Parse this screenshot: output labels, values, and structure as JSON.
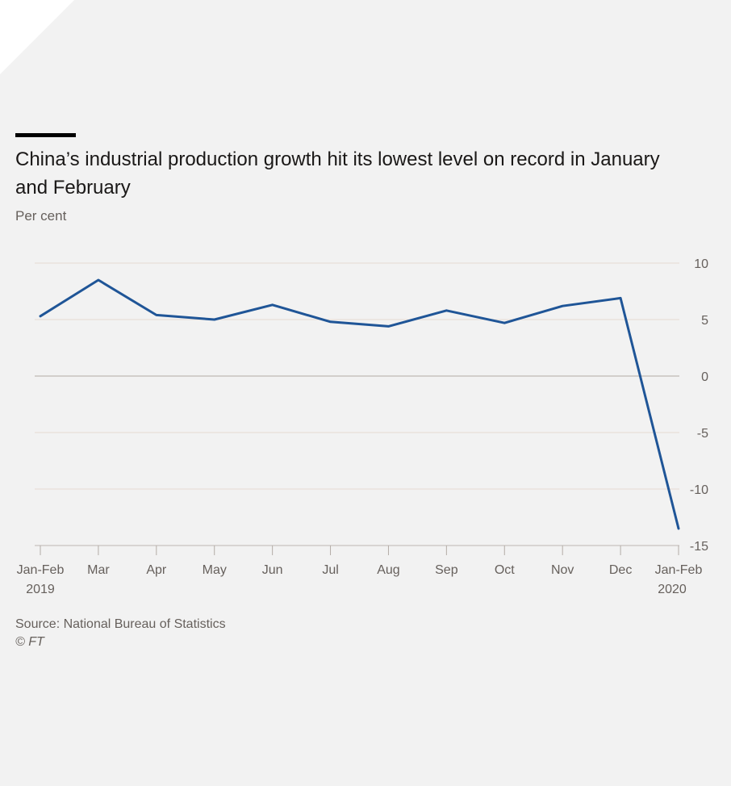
{
  "header": {
    "title": "China’s industrial production growth hit its lowest level on record in January and February",
    "subtitle": "Per cent"
  },
  "footer": {
    "source": "Source: National Bureau of Statistics",
    "copyright": "© FT"
  },
  "colors": {
    "line": "#1f5597",
    "grid": "#e8e0d8",
    "zero_line": "#c8c3be",
    "background": "#f2f2f2"
  },
  "chart_data": {
    "type": "line",
    "categories": [
      "Jan-Feb",
      "Mar",
      "Apr",
      "May",
      "Jun",
      "Jul",
      "Aug",
      "Sep",
      "Oct",
      "Nov",
      "Dec",
      "Jan-Feb"
    ],
    "category_years": [
      "2019",
      "",
      "",
      "",
      "",
      "",
      "",
      "",
      "",
      "",
      "",
      "2020"
    ],
    "series": [
      {
        "values": [
          5.3,
          8.5,
          5.4,
          5.0,
          6.3,
          4.8,
          4.4,
          5.8,
          4.7,
          6.2,
          6.9,
          -13.5
        ]
      }
    ],
    "ylim": [
      -15,
      10
    ],
    "yticks": [
      10,
      5,
      0,
      -5,
      -10,
      -15
    ],
    "ytick_labels": [
      "10",
      "5",
      "0",
      "-5",
      "-10",
      "-15"
    ],
    "grid": true,
    "y_axis_side": "right"
  }
}
